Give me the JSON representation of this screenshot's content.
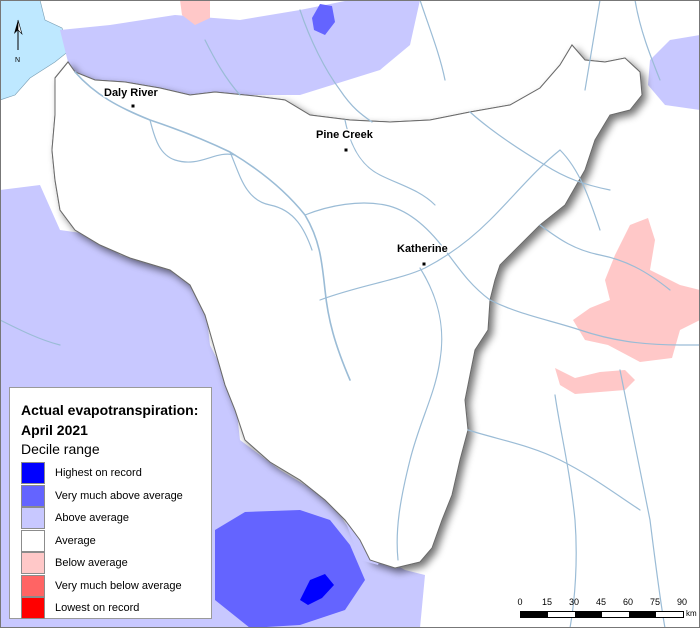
{
  "map": {
    "towns": [
      {
        "name": "Daly River"
      },
      {
        "name": "Pine Creek"
      },
      {
        "name": "Katherine"
      }
    ],
    "north_arrow_label": "N",
    "colors": {
      "highest": "#0000ff",
      "very_much_above": "#6464ff",
      "above": "#c8c8ff",
      "average": "#ffffff",
      "below": "#ffc8c8",
      "very_much_below": "#ff6464",
      "lowest": "#ff0000",
      "sea": "#bee8ff",
      "rivers": "#9bbcd6",
      "boundary": "#8a8a8a"
    }
  },
  "legend": {
    "title_line1": "Actual evapotranspiration:",
    "title_line2": "April 2021",
    "subtitle": "Decile range",
    "items": [
      {
        "label": "Highest on record",
        "color": "#0000ff"
      },
      {
        "label": "Very much above average",
        "color": "#6464ff"
      },
      {
        "label": "Above average",
        "color": "#c8c8ff"
      },
      {
        "label": "Average",
        "color": "#ffffff"
      },
      {
        "label": "Below average",
        "color": "#ffc8c8"
      },
      {
        "label": "Very much below average",
        "color": "#ff6464"
      },
      {
        "label": "Lowest on record",
        "color": "#ff0000"
      }
    ]
  },
  "scalebar": {
    "ticks": [
      "0",
      "15",
      "30",
      "45",
      "60",
      "75",
      "90"
    ],
    "unit": "km"
  }
}
